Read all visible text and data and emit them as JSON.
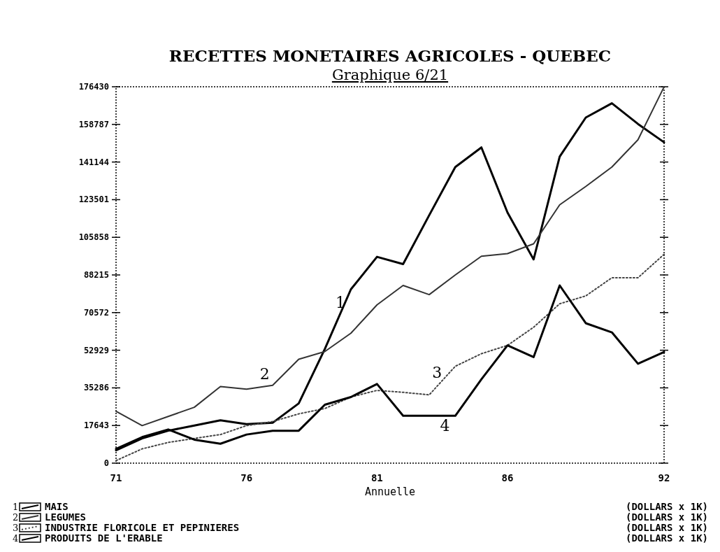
{
  "chart_data": {
    "type": "line",
    "title": "RECETTES MONETAIRES AGRICOLES - QUEBEC",
    "subtitle": "Graphique 6/21",
    "xlabel": "Annuelle",
    "x": [
      71,
      72,
      73,
      74,
      75,
      76,
      77,
      78,
      79,
      80,
      81,
      82,
      83,
      84,
      85,
      86,
      87,
      88,
      89,
      90,
      91,
      92
    ],
    "xlim": [
      71,
      92
    ],
    "xticks": [
      71,
      76,
      81,
      86,
      92
    ],
    "ylim": [
      0,
      176430
    ],
    "yticks": [
      0,
      17643,
      35286,
      {
        "value": 52929,
        "label": "52929"
      },
      70572,
      88215,
      105858,
      123501,
      141144,
      158787,
      176430
    ],
    "series": [
      {
        "name": "MAIS",
        "color": "#000000",
        "line_style": "solid",
        "values": [
          6000,
          11600,
          15200,
          17600,
          20100,
          18300,
          18900,
          28000,
          53500,
          81500,
          96700,
          93300,
          116200,
          138800,
          148000,
          117500,
          95500,
          143700,
          162000,
          168700,
          159000,
          150400
        ]
      },
      {
        "name": "LEGUMES",
        "color": "#333333",
        "line_style": "solid",
        "values": [
          24300,
          17600,
          21900,
          26200,
          35900,
          34700,
          36500,
          48700,
          52300,
          60900,
          74200,
          83300,
          79000,
          88200,
          97000,
          98200,
          102800,
          121100,
          129700,
          138800,
          151600,
          176400
        ]
      },
      {
        "name": "INDUSTRIE FLORICOLE ET PEPINIERES",
        "color": "#444444",
        "line_style": "dotted",
        "values": [
          1200,
          6700,
          9700,
          11600,
          13400,
          17600,
          19500,
          23100,
          25600,
          31000,
          34100,
          33200,
          32000,
          45400,
          51300,
          55200,
          63700,
          74700,
          78400,
          86900,
          86900,
          97900
        ]
      },
      {
        "name": "PRODUITS DE L'ERABLE",
        "color": "#000000",
        "line_style": "solid",
        "values": [
          6700,
          12200,
          15800,
          11000,
          9100,
          13400,
          15200,
          15200,
          27400,
          31000,
          37100,
          22200,
          22200,
          22200,
          39300,
          55200,
          49700,
          83300,
          65600,
          61300,
          46600,
          52100
        ]
      }
    ],
    "annotations": [
      "1",
      "2",
      "3",
      "4",
      "(DOLLARS x 1K)",
      "(DOLLARS x 1K)",
      "(DOLLARS x 1K)",
      "(DOLLARS x 1K)"
    ],
    "legend": "bottom",
    "grid": false
  }
}
